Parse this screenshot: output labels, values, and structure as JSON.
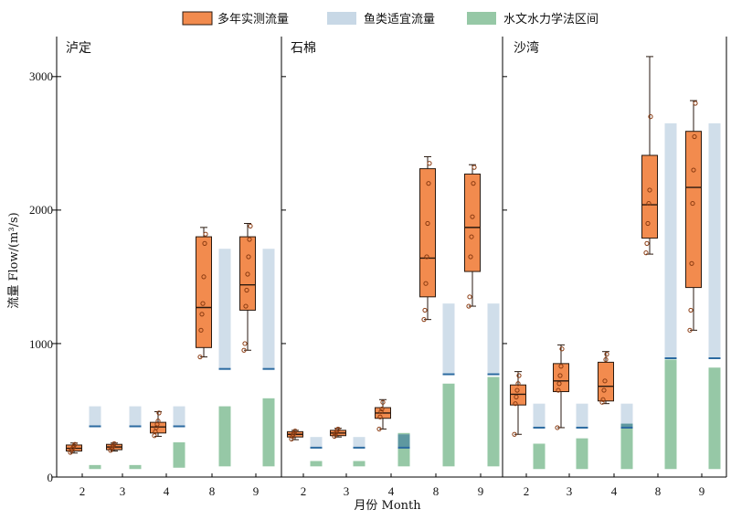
{
  "colors": {
    "measured_fill": "#f28b4e",
    "measured_edge": "#2a1a10",
    "suitable_fill": "#c8d8e6",
    "suitable_line": "#2b6aa0",
    "hydro_fill": "#96c8a6",
    "overlap_fill": "#5e98a0"
  },
  "legend": {
    "measured": "多年实测流量",
    "suitable": "鱼类适宜流量",
    "hydro": "水文水力学法区间"
  },
  "chart_data": {
    "type": "box",
    "ylabel": "流量 Flow/(m³/s)",
    "xlabel": "月份 Month",
    "ylim": [
      0,
      3300
    ],
    "yticks": [
      "0",
      "1000",
      "2000",
      "3000"
    ],
    "grid": false,
    "legend_position": "top",
    "panels": [
      {
        "title": "泸定",
        "months": [
          "2",
          "3",
          "4",
          "8",
          "9"
        ],
        "measured": [
          {
            "min": 180,
            "q1": 195,
            "median": 215,
            "q3": 240,
            "max": 255,
            "points": [
              185,
              200,
              210,
              220,
              235,
              245
            ]
          },
          {
            "min": 195,
            "q1": 205,
            "median": 225,
            "q3": 245,
            "max": 255,
            "points": [
              200,
              215,
              225,
              235,
              250
            ]
          },
          {
            "min": 305,
            "q1": 330,
            "median": 375,
            "q3": 410,
            "max": 490,
            "points": [
              310,
              340,
              370,
              395,
              420,
              480
            ]
          },
          {
            "min": 900,
            "q1": 970,
            "median": 1270,
            "q3": 1800,
            "max": 1870,
            "points": [
              900,
              1100,
              1220,
              1300,
              1500,
              1750,
              1820
            ]
          },
          {
            "min": 950,
            "q1": 1250,
            "median": 1440,
            "q3": 1800,
            "max": 1900,
            "points": [
              950,
              1000,
              1280,
              1400,
              1520,
              1650,
              1780,
              1880
            ]
          }
        ],
        "suitable": [
          {
            "low": 380,
            "high": 530,
            "marker": 380
          },
          {
            "low": 380,
            "high": 530,
            "marker": 380
          },
          {
            "low": 380,
            "high": 530,
            "marker": 380
          },
          {
            "low": 810,
            "high": 1710,
            "marker": 810
          },
          {
            "low": 810,
            "high": 1710,
            "marker": 810
          }
        ],
        "hydro": [
          {
            "low": 60,
            "high": 90
          },
          {
            "low": 60,
            "high": 90
          },
          {
            "low": 70,
            "high": 260
          },
          {
            "low": 80,
            "high": 530
          },
          {
            "low": 80,
            "high": 590
          }
        ]
      },
      {
        "title": "石棉",
        "months": [
          "2",
          "3",
          "4",
          "8",
          "9"
        ],
        "measured": [
          {
            "min": 280,
            "q1": 300,
            "median": 320,
            "q3": 340,
            "max": 350,
            "points": [
              285,
              305,
              320,
              330,
              345
            ]
          },
          {
            "min": 300,
            "q1": 310,
            "median": 330,
            "q3": 350,
            "max": 365,
            "points": [
              305,
              320,
              335,
              350,
              360
            ]
          },
          {
            "min": 360,
            "q1": 440,
            "median": 480,
            "q3": 520,
            "max": 580,
            "points": [
              360,
              450,
              490,
              510,
              560
            ]
          },
          {
            "min": 1180,
            "q1": 1350,
            "median": 1640,
            "q3": 2310,
            "max": 2400,
            "points": [
              1180,
              1250,
              1450,
              1650,
              1900,
              2200,
              2350
            ]
          },
          {
            "min": 1280,
            "q1": 1540,
            "median": 1870,
            "q3": 2270,
            "max": 2340,
            "points": [
              1280,
              1350,
              1650,
              1800,
              1950,
              2200,
              2320
            ]
          }
        ],
        "suitable": [
          {
            "low": 220,
            "high": 300,
            "marker": 220
          },
          {
            "low": 220,
            "high": 300,
            "marker": 220
          },
          {
            "low": 220,
            "high": 320,
            "marker": 220
          },
          {
            "low": 770,
            "high": 1300,
            "marker": 770
          },
          {
            "low": 770,
            "high": 1300,
            "marker": 770
          }
        ],
        "hydro": [
          {
            "low": 80,
            "high": 120
          },
          {
            "low": 80,
            "high": 120
          },
          {
            "low": 80,
            "high": 330
          },
          {
            "low": 80,
            "high": 700
          },
          {
            "low": 80,
            "high": 750
          }
        ]
      },
      {
        "title": "沙湾",
        "months": [
          "2",
          "3",
          "4",
          "8",
          "9"
        ],
        "measured": [
          {
            "min": 320,
            "q1": 540,
            "median": 620,
            "q3": 690,
            "max": 790,
            "points": [
              320,
              550,
              600,
              650,
              700,
              760
            ]
          },
          {
            "min": 370,
            "q1": 640,
            "median": 720,
            "q3": 850,
            "max": 990,
            "points": [
              370,
              650,
              700,
              760,
              830,
              960
            ]
          },
          {
            "min": 550,
            "q1": 570,
            "median": 680,
            "q3": 860,
            "max": 940,
            "points": [
              560,
              580,
              650,
              720,
              880,
              920
            ]
          },
          {
            "min": 1670,
            "q1": 1790,
            "median": 2040,
            "q3": 2410,
            "max": 3150,
            "points": [
              1680,
              1750,
              1900,
              2050,
              2150,
              2700
            ]
          },
          {
            "min": 1100,
            "q1": 1420,
            "median": 2170,
            "q3": 2590,
            "max": 2820,
            "points": [
              1100,
              1250,
              1600,
              2050,
              2300,
              2550,
              2800
            ]
          }
        ],
        "suitable": [
          {
            "low": 370,
            "high": 550,
            "marker": 370
          },
          {
            "low": 370,
            "high": 550,
            "marker": 370
          },
          {
            "low": 370,
            "high": 550,
            "marker": 370
          },
          {
            "low": 890,
            "high": 2650,
            "marker": 890
          },
          {
            "low": 890,
            "high": 2650,
            "marker": 890
          }
        ],
        "hydro": [
          {
            "low": 60,
            "high": 250
          },
          {
            "low": 60,
            "high": 290
          },
          {
            "low": 60,
            "high": 400
          },
          {
            "low": 60,
            "high": 880
          },
          {
            "low": 60,
            "high": 820
          }
        ]
      }
    ]
  }
}
